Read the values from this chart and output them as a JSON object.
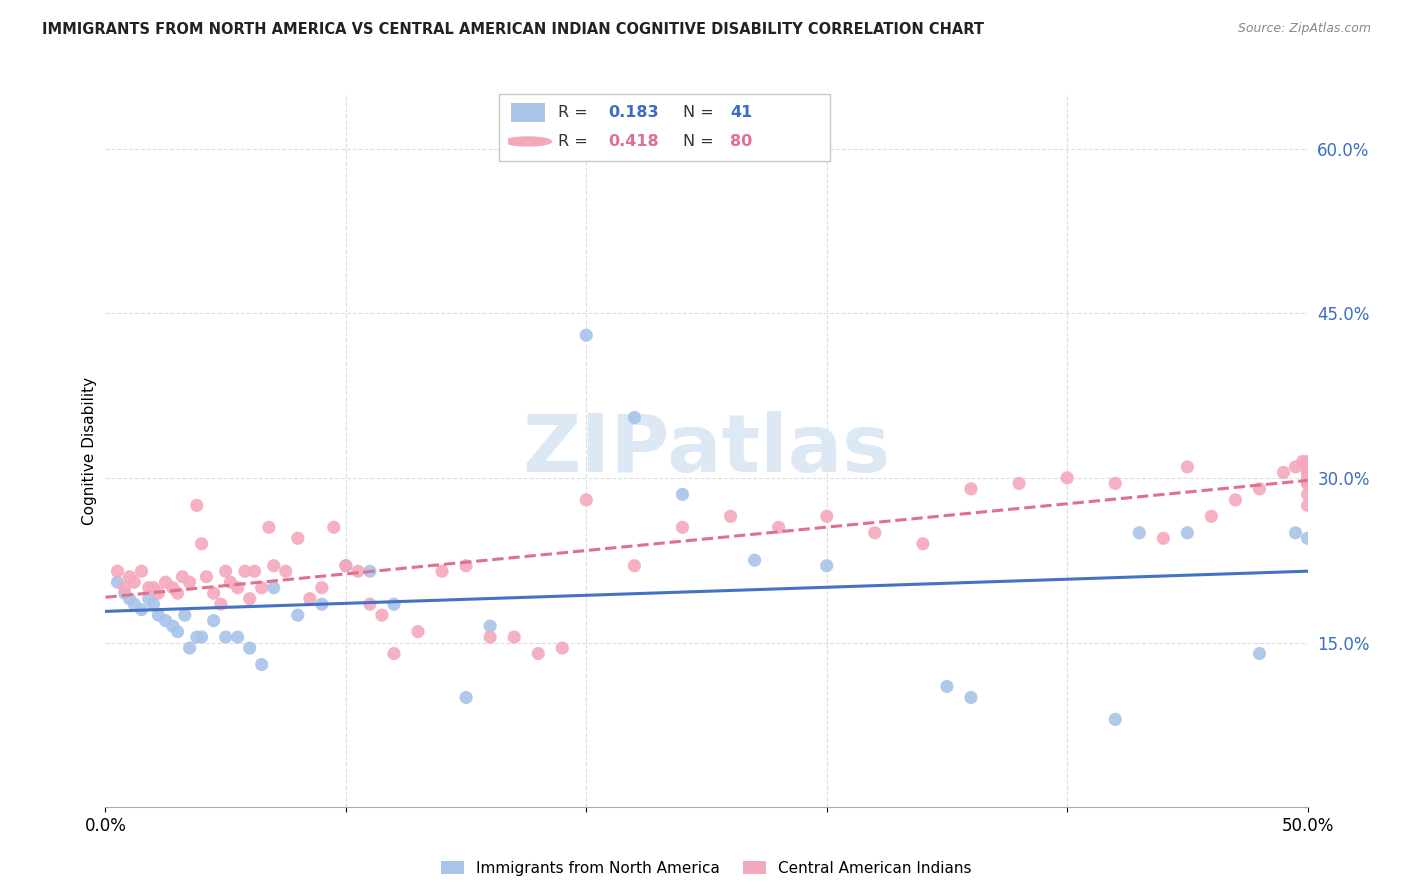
{
  "title": "IMMIGRANTS FROM NORTH AMERICA VS CENTRAL AMERICAN INDIAN COGNITIVE DISABILITY CORRELATION CHART",
  "source": "Source: ZipAtlas.com",
  "ylabel": "Cognitive Disability",
  "yticks_right": [
    "60.0%",
    "45.0%",
    "30.0%",
    "15.0%"
  ],
  "yticks_right_vals": [
    0.6,
    0.45,
    0.3,
    0.15
  ],
  "xmin": 0.0,
  "xmax": 0.5,
  "ymin": 0.0,
  "ymax": 0.65,
  "legend_label1": "Immigrants from North America",
  "legend_label2": "Central American Indians",
  "R1": 0.183,
  "N1": 41,
  "R2": 0.418,
  "N2": 80,
  "color1": "#a8c4e8",
  "color2": "#f4a8bc",
  "trendline1_color": "#4472c4",
  "trendline2_color": "#e07090",
  "watermark": "ZIPatlas",
  "watermark_color": "#dde8f5",
  "scatter1_x": [
    0.005,
    0.008,
    0.01,
    0.012,
    0.015,
    0.018,
    0.02,
    0.022,
    0.025,
    0.028,
    0.03,
    0.033,
    0.035,
    0.038,
    0.04,
    0.045,
    0.05,
    0.055,
    0.06,
    0.065,
    0.07,
    0.08,
    0.09,
    0.1,
    0.11,
    0.12,
    0.15,
    0.16,
    0.2,
    0.22,
    0.24,
    0.27,
    0.3,
    0.35,
    0.36,
    0.42,
    0.43,
    0.45,
    0.48,
    0.495,
    0.5
  ],
  "scatter1_y": [
    0.205,
    0.195,
    0.19,
    0.185,
    0.18,
    0.19,
    0.185,
    0.175,
    0.17,
    0.165,
    0.16,
    0.175,
    0.145,
    0.155,
    0.155,
    0.17,
    0.155,
    0.155,
    0.145,
    0.13,
    0.2,
    0.175,
    0.185,
    0.22,
    0.215,
    0.185,
    0.1,
    0.165,
    0.43,
    0.355,
    0.285,
    0.225,
    0.22,
    0.11,
    0.1,
    0.08,
    0.25,
    0.25,
    0.14,
    0.25,
    0.245
  ],
  "scatter2_x": [
    0.005,
    0.008,
    0.01,
    0.012,
    0.015,
    0.018,
    0.02,
    0.022,
    0.025,
    0.028,
    0.03,
    0.032,
    0.035,
    0.038,
    0.04,
    0.042,
    0.045,
    0.048,
    0.05,
    0.052,
    0.055,
    0.058,
    0.06,
    0.062,
    0.065,
    0.068,
    0.07,
    0.075,
    0.08,
    0.085,
    0.09,
    0.095,
    0.1,
    0.105,
    0.11,
    0.115,
    0.12,
    0.13,
    0.14,
    0.15,
    0.16,
    0.17,
    0.18,
    0.19,
    0.2,
    0.22,
    0.24,
    0.26,
    0.28,
    0.3,
    0.32,
    0.34,
    0.36,
    0.38,
    0.4,
    0.42,
    0.44,
    0.45,
    0.46,
    0.47,
    0.48,
    0.49,
    0.495,
    0.498,
    0.5,
    0.5,
    0.5,
    0.5,
    0.5,
    0.5,
    0.5,
    0.5,
    0.5,
    0.5,
    0.5,
    0.5,
    0.5,
    0.5,
    0.5,
    0.5
  ],
  "scatter2_y": [
    0.215,
    0.2,
    0.21,
    0.205,
    0.215,
    0.2,
    0.2,
    0.195,
    0.205,
    0.2,
    0.195,
    0.21,
    0.205,
    0.275,
    0.24,
    0.21,
    0.195,
    0.185,
    0.215,
    0.205,
    0.2,
    0.215,
    0.19,
    0.215,
    0.2,
    0.255,
    0.22,
    0.215,
    0.245,
    0.19,
    0.2,
    0.255,
    0.22,
    0.215,
    0.185,
    0.175,
    0.14,
    0.16,
    0.215,
    0.22,
    0.155,
    0.155,
    0.14,
    0.145,
    0.28,
    0.22,
    0.255,
    0.265,
    0.255,
    0.265,
    0.25,
    0.24,
    0.29,
    0.295,
    0.3,
    0.295,
    0.245,
    0.31,
    0.265,
    0.28,
    0.29,
    0.305,
    0.31,
    0.315,
    0.305,
    0.3,
    0.295,
    0.31,
    0.305,
    0.305,
    0.315,
    0.31,
    0.295,
    0.285,
    0.275,
    0.31,
    0.305,
    0.305,
    0.31,
    0.3
  ]
}
